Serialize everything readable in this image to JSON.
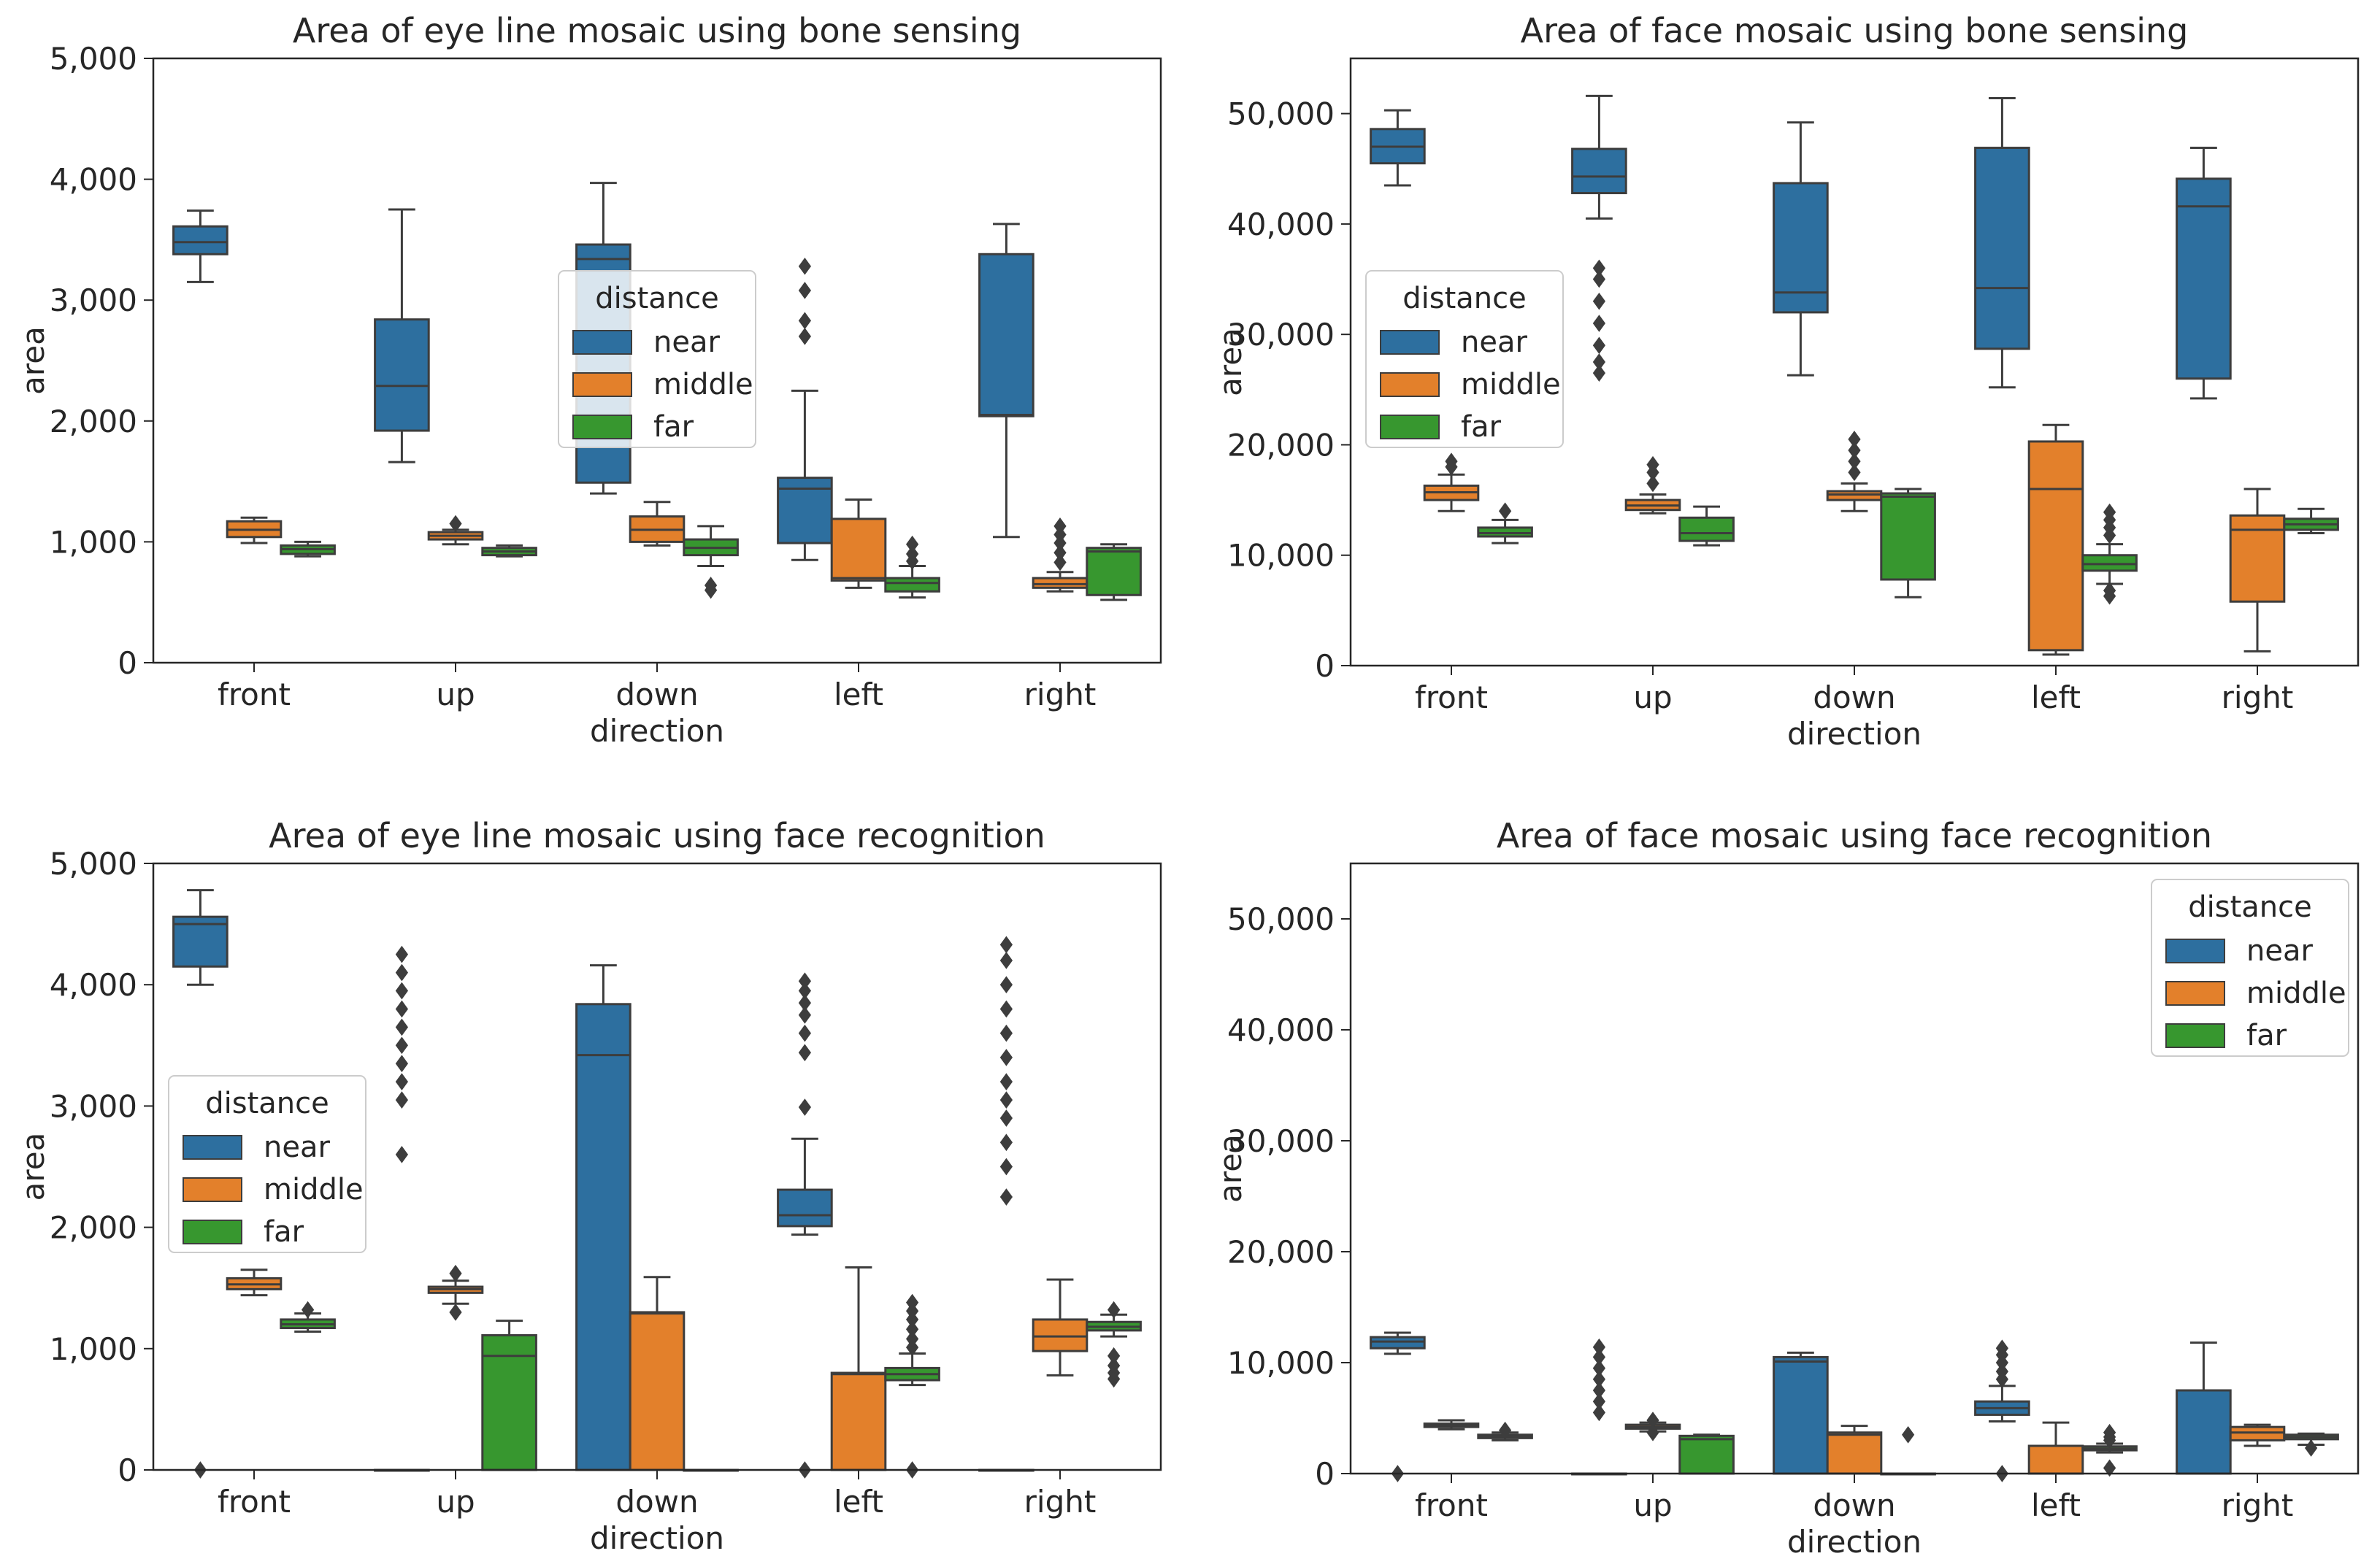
{
  "colors": {
    "near": "#2d6f9f",
    "middle": "#e3802b",
    "far": "#37972f"
  },
  "chart_data": [
    {
      "type": "box",
      "title": "Area of eye line mosaic using bone sensing",
      "xlabel": "direction",
      "ylabel": "area",
      "ylim": [
        0,
        5000
      ],
      "yticks": [
        0,
        1000,
        2000,
        3000,
        4000,
        5000
      ],
      "ytick_labels": [
        "0",
        "1,000",
        "2,000",
        "3,000",
        "4,000",
        "5,000"
      ],
      "categories": [
        "front",
        "up",
        "down",
        "left",
        "right"
      ],
      "legend": {
        "title": "distance",
        "entries": [
          "near",
          "middle",
          "far"
        ],
        "location": "center"
      },
      "series": [
        {
          "name": "near",
          "boxes": [
            {
              "whislo": 3150,
              "q1": 3380,
              "med": 3480,
              "q3": 3610,
              "whishi": 3740,
              "fliers": []
            },
            {
              "whislo": 1660,
              "q1": 1920,
              "med": 2290,
              "q3": 2840,
              "whishi": 3750,
              "fliers": []
            },
            {
              "whislo": 1400,
              "q1": 1490,
              "med": 3340,
              "q3": 3460,
              "whishi": 3970,
              "fliers": []
            },
            {
              "whislo": 850,
              "q1": 990,
              "med": 1440,
              "q3": 1530,
              "whishi": 2250,
              "fliers": [
                2700,
                2830,
                3080,
                3280
              ]
            },
            {
              "whislo": 1040,
              "q1": 2040,
              "med": 2050,
              "q3": 3380,
              "whishi": 3630,
              "fliers": []
            }
          ]
        },
        {
          "name": "middle",
          "boxes": [
            {
              "whislo": 990,
              "q1": 1040,
              "med": 1100,
              "q3": 1170,
              "whishi": 1200,
              "fliers": []
            },
            {
              "whislo": 980,
              "q1": 1020,
              "med": 1050,
              "q3": 1080,
              "whishi": 1100,
              "fliers": [
                1150
              ]
            },
            {
              "whislo": 970,
              "q1": 1000,
              "med": 1100,
              "q3": 1210,
              "whishi": 1330,
              "fliers": []
            },
            {
              "whislo": 620,
              "q1": 680,
              "med": 700,
              "q3": 1190,
              "whishi": 1350,
              "fliers": []
            },
            {
              "whislo": 590,
              "q1": 620,
              "med": 650,
              "q3": 700,
              "whishi": 750,
              "fliers": [
                830,
                910,
                990,
                1060,
                1130
              ]
            }
          ]
        },
        {
          "name": "far",
          "boxes": [
            {
              "whislo": 880,
              "q1": 900,
              "med": 940,
              "q3": 970,
              "whishi": 1000,
              "fliers": []
            },
            {
              "whislo": 880,
              "q1": 890,
              "med": 920,
              "q3": 950,
              "whishi": 970,
              "fliers": []
            },
            {
              "whislo": 800,
              "q1": 890,
              "med": 950,
              "q3": 1020,
              "whishi": 1130,
              "fliers": [
                600,
                640
              ]
            },
            {
              "whislo": 540,
              "q1": 590,
              "med": 660,
              "q3": 700,
              "whishi": 800,
              "fliers": [
                840,
                900,
                980
              ]
            },
            {
              "whislo": 520,
              "q1": 560,
              "med": 920,
              "q3": 950,
              "whishi": 980,
              "fliers": []
            }
          ]
        }
      ]
    },
    {
      "type": "box",
      "title": "Area of face mosaic using bone sensing",
      "xlabel": "direction",
      "ylabel": "area",
      "ylim": [
        0,
        55000
      ],
      "yticks": [
        0,
        10000,
        20000,
        30000,
        40000,
        50000
      ],
      "ytick_labels": [
        "0",
        "10,000",
        "20,000",
        "30,000",
        "40,000",
        "50,000"
      ],
      "categories": [
        "front",
        "up",
        "down",
        "left",
        "right"
      ],
      "legend": {
        "title": "distance",
        "entries": [
          "near",
          "middle",
          "far"
        ],
        "location": "center-left"
      },
      "series": [
        {
          "name": "near",
          "boxes": [
            {
              "whislo": 43500,
              "q1": 45500,
              "med": 47000,
              "q3": 48600,
              "whishi": 50300,
              "fliers": []
            },
            {
              "whislo": 40500,
              "q1": 42800,
              "med": 44300,
              "q3": 46800,
              "whishi": 51600,
              "fliers": [
                26500,
                27500,
                29000,
                31000,
                33000,
                35000,
                36000
              ]
            },
            {
              "whislo": 26300,
              "q1": 32000,
              "med": 33800,
              "q3": 43700,
              "whishi": 49200,
              "fliers": []
            },
            {
              "whislo": 25200,
              "q1": 28700,
              "med": 34200,
              "q3": 46900,
              "whishi": 51400,
              "fliers": []
            },
            {
              "whislo": 24200,
              "q1": 26000,
              "med": 41600,
              "q3": 44100,
              "whishi": 46900,
              "fliers": []
            }
          ]
        },
        {
          "name": "middle",
          "boxes": [
            {
              "whislo": 14000,
              "q1": 15000,
              "med": 15700,
              "q3": 16300,
              "whishi": 17300,
              "fliers": [
                18000,
                18500
              ]
            },
            {
              "whislo": 13800,
              "q1": 14100,
              "med": 14500,
              "q3": 15000,
              "whishi": 15500,
              "fliers": [
                16500,
                17500,
                18200
              ]
            },
            {
              "whislo": 14000,
              "q1": 15000,
              "med": 15500,
              "q3": 15800,
              "whishi": 16500,
              "fliers": [
                17500,
                18500,
                19500,
                20500
              ]
            },
            {
              "whislo": 1000,
              "q1": 1400,
              "med": 16000,
              "q3": 20300,
              "whishi": 21800,
              "fliers": []
            },
            {
              "whislo": 1300,
              "q1": 5800,
              "med": 12300,
              "q3": 13600,
              "whishi": 16000,
              "fliers": []
            }
          ]
        },
        {
          "name": "far",
          "boxes": [
            {
              "whislo": 11100,
              "q1": 11700,
              "med": 12000,
              "q3": 12500,
              "whishi": 13200,
              "fliers": [
                14000
              ]
            },
            {
              "whislo": 10900,
              "q1": 11300,
              "med": 12000,
              "q3": 13400,
              "whishi": 14400,
              "fliers": []
            },
            {
              "whislo": 6200,
              "q1": 7800,
              "med": 15300,
              "q3": 15600,
              "whishi": 16000,
              "fliers": []
            },
            {
              "whislo": 7400,
              "q1": 8600,
              "med": 9200,
              "q3": 10000,
              "whishi": 11000,
              "fliers": [
                6300,
                6800,
                11800,
                12500,
                13200,
                13900
              ]
            },
            {
              "whislo": 12000,
              "q1": 12300,
              "med": 12800,
              "q3": 13300,
              "whishi": 14200,
              "fliers": []
            }
          ]
        }
      ]
    },
    {
      "type": "box",
      "title": "Area of eye line mosaic using face recognition",
      "xlabel": "direction",
      "ylabel": "area",
      "ylim": [
        0,
        5000
      ],
      "yticks": [
        0,
        1000,
        2000,
        3000,
        4000,
        5000
      ],
      "ytick_labels": [
        "0",
        "1,000",
        "2,000",
        "3,000",
        "4,000",
        "5,000"
      ],
      "categories": [
        "front",
        "up",
        "down",
        "left",
        "right"
      ],
      "legend": {
        "title": "distance",
        "entries": [
          "near",
          "middle",
          "far"
        ],
        "location": "center-left"
      },
      "series": [
        {
          "name": "near",
          "boxes": [
            {
              "whislo": 4000,
              "q1": 4150,
              "med": 4500,
              "q3": 4560,
              "whishi": 4780,
              "fliers": [
                0
              ]
            },
            {
              "whislo": 0,
              "q1": 0,
              "med": 0,
              "q3": 0,
              "whishi": 0,
              "fliers": [
                2600,
                3050,
                3200,
                3350,
                3500,
                3650,
                3800,
                3950,
                4100,
                4250
              ]
            },
            {
              "whislo": 0,
              "q1": 0,
              "med": 3420,
              "q3": 3840,
              "whishi": 4160,
              "fliers": []
            },
            {
              "whislo": 1940,
              "q1": 2010,
              "med": 2100,
              "q3": 2310,
              "whishi": 2730,
              "fliers": [
                0,
                2990,
                3440,
                3600,
                3750,
                3850,
                3950,
                4030
              ]
            },
            {
              "whislo": 0,
              "q1": 0,
              "med": 0,
              "q3": 0,
              "whishi": 0,
              "fliers": [
                2250,
                2500,
                2700,
                2900,
                3050,
                3200,
                3400,
                3600,
                3800,
                4000,
                4200,
                4330
              ]
            }
          ]
        },
        {
          "name": "middle",
          "boxes": [
            {
              "whislo": 1440,
              "q1": 1490,
              "med": 1530,
              "q3": 1580,
              "whishi": 1650,
              "fliers": []
            },
            {
              "whislo": 1370,
              "q1": 1460,
              "med": 1490,
              "q3": 1510,
              "whishi": 1560,
              "fliers": [
                1300,
                1620
              ]
            },
            {
              "whislo": 0,
              "q1": 0,
              "med": 1290,
              "q3": 1300,
              "whishi": 1590,
              "fliers": []
            },
            {
              "whislo": 0,
              "q1": 0,
              "med": 790,
              "q3": 800,
              "whishi": 1670,
              "fliers": []
            },
            {
              "whislo": 780,
              "q1": 980,
              "med": 1100,
              "q3": 1240,
              "whishi": 1570,
              "fliers": []
            }
          ]
        },
        {
          "name": "far",
          "boxes": [
            {
              "whislo": 1140,
              "q1": 1170,
              "med": 1200,
              "q3": 1240,
              "whishi": 1290,
              "fliers": [
                1320
              ]
            },
            {
              "whislo": 0,
              "q1": 0,
              "med": 940,
              "q3": 1110,
              "whishi": 1230,
              "fliers": []
            },
            {
              "whislo": 0,
              "q1": 0,
              "med": 0,
              "q3": 0,
              "whishi": 0,
              "fliers": []
            },
            {
              "whislo": 700,
              "q1": 740,
              "med": 790,
              "q3": 840,
              "whishi": 960,
              "fliers": [
                0,
                1010,
                1080,
                1160,
                1240,
                1310,
                1380
              ]
            },
            {
              "whislo": 1100,
              "q1": 1150,
              "med": 1180,
              "q3": 1220,
              "whishi": 1280,
              "fliers": [
                750,
                800,
                860,
                940,
                1320
              ]
            }
          ]
        }
      ]
    },
    {
      "type": "box",
      "title": "Area of face mosaic using face recognition",
      "xlabel": "direction",
      "ylabel": "area",
      "ylim": [
        0,
        55000
      ],
      "yticks": [
        0,
        10000,
        20000,
        30000,
        40000,
        50000
      ],
      "ytick_labels": [
        "0",
        "10,000",
        "20,000",
        "30,000",
        "40,000",
        "50,000"
      ],
      "categories": [
        "front",
        "up",
        "down",
        "left",
        "right"
      ],
      "legend": {
        "title": "distance",
        "entries": [
          "near",
          "middle",
          "far"
        ],
        "location": "upper-right"
      },
      "series": [
        {
          "name": "near",
          "boxes": [
            {
              "whislo": 10800,
              "q1": 11300,
              "med": 11900,
              "q3": 12300,
              "whishi": 12700,
              "fliers": [
                0
              ]
            },
            {
              "whislo": 0,
              "q1": 0,
              "med": 0,
              "q3": 0,
              "whishi": 0,
              "fliers": [
                5500,
                6500,
                7500,
                8500,
                9500,
                10500,
                11400
              ]
            },
            {
              "whislo": 0,
              "q1": 0,
              "med": 10100,
              "q3": 10500,
              "whishi": 10900,
              "fliers": []
            },
            {
              "whislo": 4700,
              "q1": 5300,
              "med": 5900,
              "q3": 6500,
              "whishi": 7900,
              "fliers": [
                0,
                8500,
                9200,
                10000,
                10700,
                11300
              ]
            },
            {
              "whislo": 0,
              "q1": 0,
              "med": 0,
              "q3": 7500,
              "whishi": 11800,
              "fliers": []
            }
          ]
        },
        {
          "name": "middle",
          "boxes": [
            {
              "whislo": 4000,
              "q1": 4200,
              "med": 4350,
              "q3": 4500,
              "whishi": 4800,
              "fliers": []
            },
            {
              "whislo": 3800,
              "q1": 4050,
              "med": 4200,
              "q3": 4400,
              "whishi": 4600,
              "fliers": [
                3700,
                4800
              ]
            },
            {
              "whislo": 0,
              "q1": 0,
              "med": 3500,
              "q3": 3700,
              "whishi": 4300,
              "fliers": []
            },
            {
              "whislo": 0,
              "q1": 0,
              "med": 0,
              "q3": 2500,
              "whishi": 4600,
              "fliers": []
            },
            {
              "whislo": 2500,
              "q1": 3000,
              "med": 3700,
              "q3": 4200,
              "whishi": 4400,
              "fliers": []
            }
          ]
        },
        {
          "name": "far",
          "boxes": [
            {
              "whislo": 3000,
              "q1": 3200,
              "med": 3350,
              "q3": 3500,
              "whishi": 3700,
              "fliers": [
                3900
              ]
            },
            {
              "whislo": 0,
              "q1": 0,
              "med": 3100,
              "q3": 3400,
              "whishi": 3500,
              "fliers": []
            },
            {
              "whislo": 0,
              "q1": 0,
              "med": 0,
              "q3": 0,
              "whishi": 0,
              "fliers": [
                3500
              ]
            },
            {
              "whislo": 1900,
              "q1": 2100,
              "med": 2250,
              "q3": 2450,
              "whishi": 2700,
              "fliers": [
                500,
                3000,
                3300,
                3700
              ]
            },
            {
              "whislo": 2600,
              "q1": 3100,
              "med": 3300,
              "q3": 3500,
              "whishi": 3600,
              "fliers": [
                2300
              ]
            }
          ]
        }
      ]
    }
  ]
}
